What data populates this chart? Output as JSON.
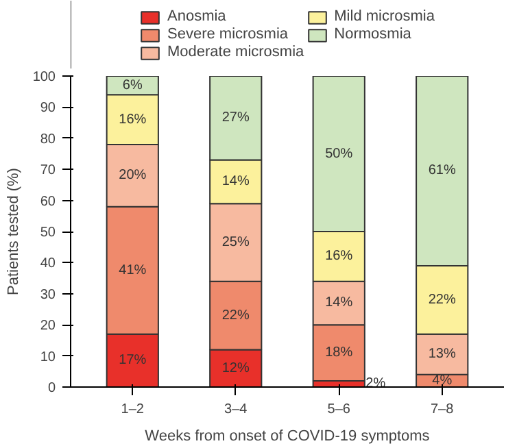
{
  "chart_data": {
    "type": "bar",
    "stacked": true,
    "xlabel": "Weeks from onset of COVID-19 symptoms",
    "ylabel": "Patients tested (%)",
    "categories": [
      "1–2",
      "3–4",
      "5–6",
      "7–8"
    ],
    "series": [
      {
        "name": "Anosmia",
        "color": "#e8302a",
        "values": [
          17,
          12,
          2,
          0
        ],
        "value_labels": [
          "17%",
          "12%",
          "2%",
          null
        ]
      },
      {
        "name": "Severe microsmia",
        "color": "#ef8a6c",
        "values": [
          41,
          22,
          18,
          4
        ],
        "value_labels": [
          "41%",
          "22%",
          "18%",
          "4%"
        ]
      },
      {
        "name": "Moderate microsmia",
        "color": "#f7baa0",
        "values": [
          20,
          25,
          14,
          13
        ],
        "value_labels": [
          "20%",
          "25%",
          "14%",
          "13%"
        ]
      },
      {
        "name": "Mild microsmia",
        "color": "#fcf19c",
        "values": [
          16,
          14,
          16,
          22
        ],
        "value_labels": [
          "16%",
          "14%",
          "16%",
          "22%"
        ]
      },
      {
        "name": "Normosmia",
        "color": "#cfe6bf",
        "values": [
          6,
          27,
          50,
          61
        ],
        "value_labels": [
          "6%",
          "27%",
          "50%",
          "61%"
        ]
      }
    ],
    "ylim": [
      0,
      100
    ],
    "yticks": [
      0,
      10,
      20,
      30,
      40,
      50,
      60,
      70,
      80,
      90,
      100
    ],
    "grid": false,
    "legend": "top"
  }
}
